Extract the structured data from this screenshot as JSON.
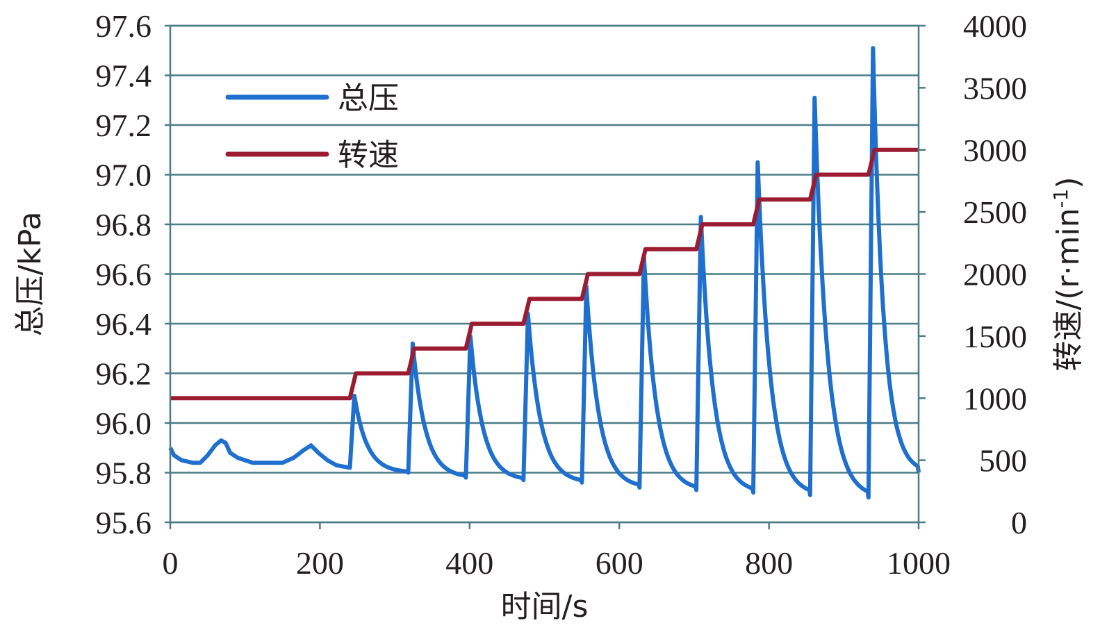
{
  "chart_data": {
    "type": "line",
    "xlabel": "时间/s",
    "ylabel_left": "总压/kPa",
    "ylabel_right_main": "转速/(r·min",
    "ylabel_right_sup": "-1",
    "ylabel_right_close": ")",
    "xlim": [
      0,
      1000
    ],
    "ylim_left": [
      95.6,
      97.6
    ],
    "ylim_right": [
      0,
      4000
    ],
    "x_ticks": [
      "0",
      "200",
      "400",
      "600",
      "800",
      "1000"
    ],
    "y_left_ticks": [
      "95.6",
      "95.8",
      "96.0",
      "96.2",
      "96.4",
      "96.6",
      "96.8",
      "97.0",
      "97.2",
      "97.4",
      "97.6"
    ],
    "y_right_ticks": [
      "0",
      "500",
      "1000",
      "1500",
      "2000",
      "2500",
      "3000",
      "3500",
      "4000"
    ],
    "grid": true,
    "legend_position": "top-left",
    "series": [
      {
        "name": "总压",
        "axis": "left",
        "color": "#1f6fcf",
        "baseline": [
          [
            0,
            95.9
          ],
          [
            5,
            95.87
          ],
          [
            15,
            95.85
          ],
          [
            30,
            95.84
          ],
          [
            40,
            95.84
          ],
          [
            50,
            95.87
          ],
          [
            60,
            95.91
          ],
          [
            68,
            95.93
          ],
          [
            74,
            95.92
          ],
          [
            80,
            95.88
          ],
          [
            90,
            95.86
          ],
          [
            100,
            95.85
          ],
          [
            110,
            95.84
          ],
          [
            130,
            95.84
          ],
          [
            150,
            95.84
          ],
          [
            165,
            95.86
          ],
          [
            178,
            95.89
          ],
          [
            188,
            95.91
          ],
          [
            198,
            95.88
          ],
          [
            210,
            95.85
          ],
          [
            222,
            95.83
          ],
          [
            240,
            95.82
          ]
        ],
        "cycles": [
          {
            "start": 240,
            "base": 95.82,
            "peak": 96.11,
            "end": 318,
            "end_value": 95.8
          },
          {
            "start": 318,
            "base": 95.8,
            "peak": 96.32,
            "end": 395,
            "end_value": 95.78
          },
          {
            "start": 395,
            "base": 95.78,
            "peak": 96.35,
            "end": 472,
            "end_value": 95.77
          },
          {
            "start": 472,
            "base": 95.77,
            "peak": 96.44,
            "end": 550,
            "end_value": 95.76
          },
          {
            "start": 550,
            "base": 95.76,
            "peak": 96.55,
            "end": 627,
            "end_value": 95.74
          },
          {
            "start": 627,
            "base": 95.74,
            "peak": 96.67,
            "end": 703,
            "end_value": 95.73
          },
          {
            "start": 703,
            "base": 95.73,
            "peak": 96.83,
            "end": 779,
            "end_value": 95.72
          },
          {
            "start": 779,
            "base": 95.72,
            "peak": 97.05,
            "end": 855,
            "end_value": 95.71
          },
          {
            "start": 855,
            "base": 95.71,
            "peak": 97.31,
            "end": 933,
            "end_value": 95.7
          },
          {
            "start": 933,
            "base": 95.7,
            "peak": 97.51,
            "end": 1000,
            "end_value": 95.8
          }
        ]
      },
      {
        "name": "转速",
        "axis": "right",
        "color": "#9b1b30",
        "steps": [
          [
            0,
            1000
          ],
          [
            240,
            1000
          ],
          [
            248,
            1200
          ],
          [
            318,
            1200
          ],
          [
            326,
            1400
          ],
          [
            395,
            1400
          ],
          [
            403,
            1600
          ],
          [
            472,
            1600
          ],
          [
            480,
            1800
          ],
          [
            550,
            1800
          ],
          [
            558,
            2000
          ],
          [
            627,
            2000
          ],
          [
            635,
            2200
          ],
          [
            703,
            2200
          ],
          [
            711,
            2400
          ],
          [
            779,
            2400
          ],
          [
            787,
            2600
          ],
          [
            855,
            2600
          ],
          [
            863,
            2800
          ],
          [
            933,
            2800
          ],
          [
            941,
            3000
          ],
          [
            1000,
            3000
          ]
        ]
      }
    ]
  }
}
